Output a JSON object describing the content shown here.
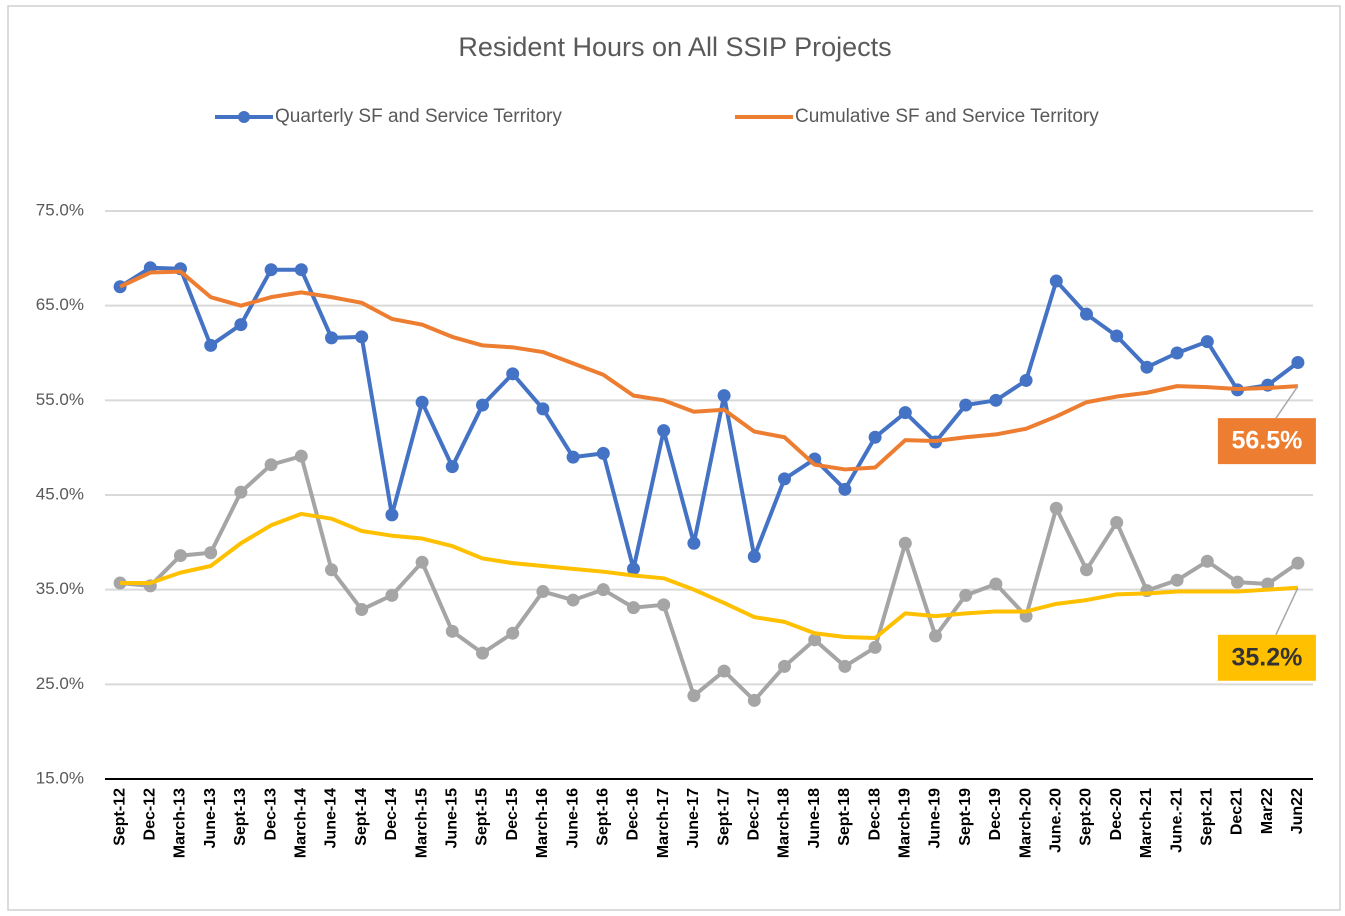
{
  "chart_data": {
    "type": "line",
    "title": "Resident Hours on All SSIP Projects",
    "categories": [
      "Sept-12",
      "Dec-12",
      "March-13",
      "June-13",
      "Sept-13",
      "Dec-13",
      "March-14",
      "June-14",
      "Sept-14",
      "Dec-14",
      "March-15",
      "June-15",
      "Sept-15",
      "Dec-15",
      "March-16",
      "June-16",
      "Sept-16",
      "Dec-16",
      "March-17",
      "June-17",
      "Sept-17",
      "Dec-17",
      "March-18",
      "June-18",
      "Sept-18",
      "Dec-18",
      "March-19",
      "June-19",
      "Sept-19",
      "Dec-19",
      "March-20",
      "June.-20",
      "Sept-20",
      "Dec-20",
      "March-21",
      "June.-21",
      "Sept-21",
      "Dec21",
      "Mar22",
      "Jun22"
    ],
    "series": [
      {
        "name": "Quarterly SF and Service Territory",
        "color": "#4472c4",
        "markers": true,
        "values": [
          67.0,
          69.0,
          68.9,
          60.8,
          63.0,
          68.8,
          68.8,
          61.6,
          61.7,
          42.9,
          54.8,
          48.0,
          54.5,
          57.8,
          54.1,
          49.0,
          49.4,
          37.2,
          51.8,
          39.9,
          55.5,
          38.5,
          46.7,
          48.8,
          45.6,
          51.1,
          53.7,
          50.6,
          54.5,
          55.0,
          57.1,
          67.6,
          64.1,
          61.8,
          58.5,
          60.0,
          61.2,
          56.1,
          56.6,
          59.0
        ]
      },
      {
        "name": "Cumulative SF and Service Territory",
        "color": "#ed7d31",
        "markers": false,
        "values": [
          67.0,
          68.5,
          68.6,
          65.9,
          65.0,
          65.9,
          66.4,
          65.9,
          65.3,
          63.6,
          63.0,
          61.7,
          60.8,
          60.6,
          60.1,
          58.9,
          57.7,
          55.5,
          55.0,
          53.8,
          54.0,
          51.7,
          51.1,
          48.2,
          47.7,
          47.9,
          50.8,
          50.7,
          51.1,
          51.4,
          52.0,
          53.3,
          54.8,
          55.4,
          55.8,
          56.5,
          56.4,
          56.2,
          56.3,
          56.5
        ],
        "value_labels": [
          null,
          null,
          null,
          null,
          null,
          null,
          null,
          null,
          null,
          null,
          null,
          null,
          null,
          null,
          null,
          null,
          null,
          null,
          null,
          null,
          null,
          null,
          null,
          null,
          null,
          null,
          null,
          null,
          null,
          null,
          null,
          null,
          null,
          null,
          null,
          null,
          null,
          null,
          null,
          "56.5%"
        ]
      },
      {
        "color": "#a5a5a5",
        "markers": true,
        "values": [
          35.7,
          35.4,
          38.6,
          38.9,
          45.3,
          48.2,
          49.1,
          37.1,
          32.9,
          34.4,
          37.9,
          30.6,
          28.3,
          30.4,
          34.8,
          33.9,
          35.0,
          33.1,
          33.4,
          23.8,
          26.4,
          23.3,
          26.9,
          29.7,
          26.9,
          28.9,
          39.9,
          30.1,
          34.4,
          35.6,
          32.2,
          43.6,
          37.1,
          42.1,
          34.9,
          36.0,
          38.0,
          35.8,
          35.6,
          37.8
        ]
      },
      {
        "color": "#ffc000",
        "markers": false,
        "values": [
          35.7,
          35.7,
          36.8,
          37.5,
          39.9,
          41.8,
          43.0,
          42.5,
          41.2,
          40.7,
          40.4,
          39.6,
          38.3,
          37.8,
          37.5,
          37.2,
          36.9,
          36.5,
          36.2,
          35.0,
          33.6,
          32.1,
          31.6,
          30.4,
          30.0,
          29.9,
          32.5,
          32.2,
          32.5,
          32.7,
          32.7,
          33.5,
          33.9,
          34.5,
          34.6,
          34.8,
          34.8,
          34.8,
          35.0,
          35.2
        ],
        "value_labels": [
          null,
          null,
          null,
          null,
          null,
          null,
          null,
          null,
          null,
          null,
          null,
          null,
          null,
          null,
          null,
          null,
          null,
          null,
          null,
          null,
          null,
          null,
          null,
          null,
          null,
          null,
          null,
          null,
          null,
          null,
          null,
          null,
          null,
          null,
          null,
          null,
          null,
          null,
          null,
          "35.2%"
        ]
      }
    ],
    "ylim": [
      15,
      75
    ],
    "yticks": [
      {
        "value": 15,
        "label": "15.0%"
      },
      {
        "value": 25,
        "label": "25.0%"
      },
      {
        "value": 35,
        "label": "35.0%"
      },
      {
        "value": 45,
        "label": "45.0%"
      },
      {
        "value": 55,
        "label": "55.0%"
      },
      {
        "value": 65,
        "label": "65.0%"
      },
      {
        "value": 75,
        "label": "75.0%"
      }
    ],
    "grid": true,
    "legend": "top"
  }
}
